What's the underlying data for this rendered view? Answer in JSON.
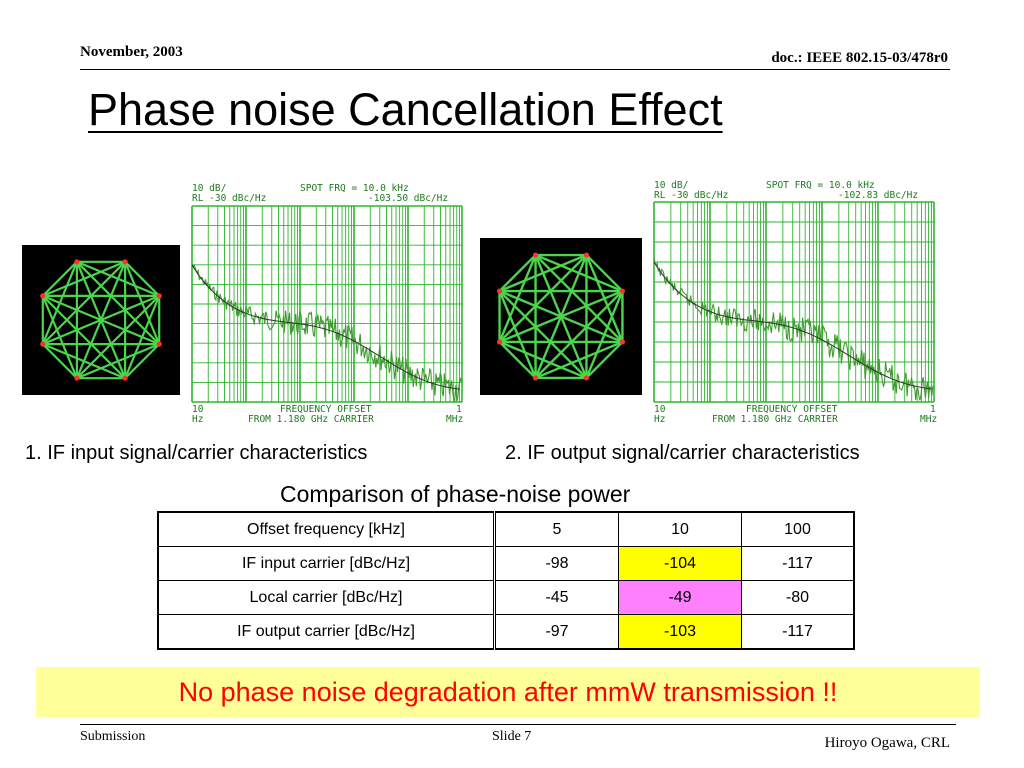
{
  "header": {
    "date": "November, 2003",
    "doc_id": "doc.: IEEE 802.15-03/478r0"
  },
  "title": "Phase noise Cancellation Effect",
  "figures": [
    {
      "caption": "1. IF input signal/carrier characteristics",
      "screen": {
        "top_left_1": "10 dB/",
        "top_left_2": "RL -30 dBc/Hz",
        "top_right_1": "SPOT FRQ =    10.0 kHz",
        "top_right_2": "-103.50 dBc/Hz",
        "x_start_1": "10",
        "x_start_2": "Hz",
        "x_label_1": "FREQUENCY OFFSET",
        "x_label_2": "FROM  1.180 GHz CARRIER",
        "x_end_1": "1",
        "x_end_2": "MHz"
      }
    },
    {
      "caption": "2. IF output signal/carrier characteristics",
      "screen": {
        "top_left_1": "10 dB/",
        "top_left_2": "RL -30 dBc/Hz",
        "top_right_1": "SPOT FRQ =    10.0 kHz",
        "top_right_2": "-102.83 dBc/Hz",
        "x_start_1": "10",
        "x_start_2": "Hz",
        "x_label_1": "FREQUENCY OFFSET",
        "x_label_2": "FROM  1.180 GHz CARRIER",
        "x_end_1": "1",
        "x_end_2": "MHz"
      }
    }
  ],
  "table": {
    "title": "Comparison of phase-noise power",
    "rows": [
      [
        "Offset frequency [kHz]",
        "5",
        "10",
        "100"
      ],
      [
        "IF input carrier [dBc/Hz]",
        "-98",
        "-104",
        "-117"
      ],
      [
        "Local carrier [dBc/Hz]",
        "-45",
        "-49",
        "-80"
      ],
      [
        "IF output carrier [dBc/Hz]",
        "-97",
        "-103",
        "-117"
      ]
    ]
  },
  "colors": {
    "highlight_yellow": "#ffff00",
    "highlight_magenta": "#ff80ff",
    "banner_bg": "#ffff99",
    "banner_text": "#ff0000",
    "trace_green": "#1e7a1e",
    "grid_green": "#2fb52f"
  },
  "banner": "No phase noise degradation after mmW transmission !!",
  "footer": {
    "left": "Submission",
    "center": "Slide 7",
    "right": "Hiroyo Ogawa, CRL"
  }
}
